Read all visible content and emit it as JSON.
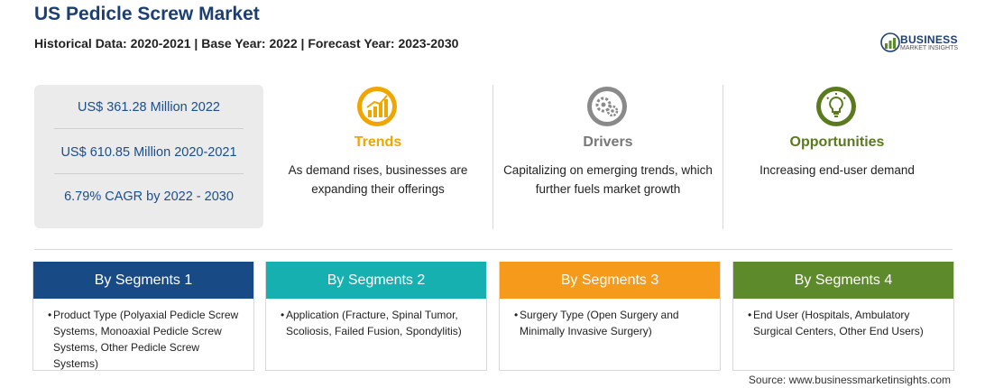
{
  "header": {
    "title": "US Pedicle Screw Market",
    "subtitle": "Historical Data: 2020-2021 | Base Year: 2022 | Forecast Year: 2023-2030"
  },
  "logo": {
    "word1": "BUSINESS",
    "word2": "MARKET INSIGHTS"
  },
  "stats": [
    {
      "text": "US$ 361.28 Million 2022"
    },
    {
      "text": "US$ 610.85 Million 2020-2021"
    },
    {
      "text": "6.79% CAGR by 2022 - 2030"
    }
  ],
  "columns": [
    {
      "heading": "Trends",
      "description": "As demand rises, businesses are expanding their offerings",
      "color": "#f0a500",
      "icon": "chart-growth-icon"
    },
    {
      "heading": "Drivers",
      "description": "Capitalizing on emerging trends, which further fuels market growth",
      "color": "#777777",
      "icon": "gears-icon"
    },
    {
      "heading": "Opportunities",
      "description": "Increasing end-user demand",
      "color": "#5a7a1e",
      "icon": "lightbulb-icon"
    }
  ],
  "segments": [
    {
      "title": "By Segments 1",
      "color": "#184a86",
      "body": "Product Type (Polyaxial Pedicle Screw Systems, Monoaxial Pedicle Screw Systems, Other Pedicle Screw Systems)"
    },
    {
      "title": "By Segments 2",
      "color": "#17b0b0",
      "body": "Application (Fracture, Spinal Tumor, Scoliosis, Failed Fusion, Spondylitis)"
    },
    {
      "title": "By Segments 3",
      "color": "#f59a1b",
      "body": "Surgery Type (Open Surgery and Minimally Invasive Surgery)"
    },
    {
      "title": "By Segments 4",
      "color": "#5d8a2a",
      "body": "End User (Hospitals, Ambulatory Surgical Centers, Other End Users)"
    }
  ],
  "source": "Source: www.businessmarketinsights.com"
}
